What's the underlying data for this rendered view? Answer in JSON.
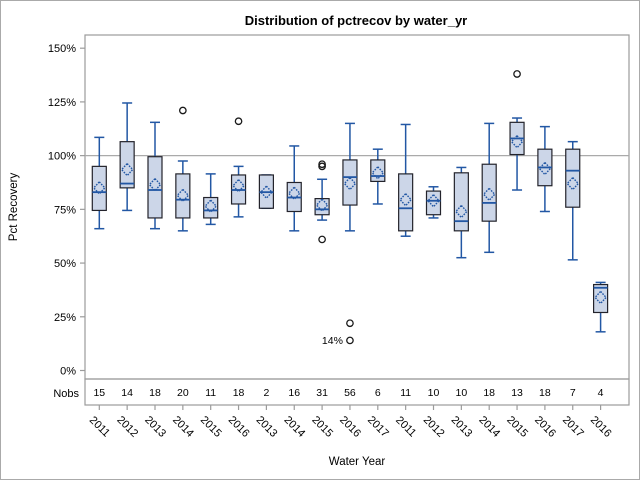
{
  "chart_data": {
    "type": "boxplot",
    "title": "Distribution of pctrecov by water_yr",
    "xlabel": "Water Year",
    "ylabel": "Pct Recovery",
    "nobs_row_label": "Nobs",
    "reference_line_value": 100,
    "y_axis": {
      "tick_values": [
        0,
        25,
        50,
        75,
        100,
        125,
        150
      ],
      "tick_labels": [
        "0%",
        "25%",
        "50%",
        "75%",
        "100%",
        "125%",
        "150%"
      ],
      "range": [
        -4,
        156
      ],
      "grid": false
    },
    "categories": [
      "2011",
      "2012",
      "2013",
      "2014",
      "2015",
      "2016",
      "2013",
      "2014",
      "2015",
      "2016",
      "2017",
      "2011",
      "2012",
      "2013",
      "2014",
      "2015",
      "2016",
      "2017",
      "2016"
    ],
    "nobs": [
      15,
      14,
      18,
      20,
      11,
      18,
      2,
      16,
      31,
      56,
      6,
      11,
      10,
      10,
      18,
      13,
      18,
      7,
      4
    ],
    "boxes": [
      {
        "water_yr": "2011",
        "nobs": 15,
        "whisker_low": 66,
        "q1": 74.5,
        "median": 83,
        "mean": 85,
        "q3": 95,
        "whisker_high": 108.5,
        "outliers": []
      },
      {
        "water_yr": "2012",
        "nobs": 14,
        "whisker_low": 74.5,
        "q1": 85,
        "median": 87,
        "mean": 93.5,
        "q3": 106.5,
        "whisker_high": 124.5,
        "outliers": []
      },
      {
        "water_yr": "2013",
        "nobs": 18,
        "whisker_low": 66,
        "q1": 71,
        "median": 84,
        "mean": 86.5,
        "q3": 99.5,
        "whisker_high": 115.5,
        "outliers": []
      },
      {
        "water_yr": "2014",
        "nobs": 20,
        "whisker_low": 65,
        "q1": 71,
        "median": 79.5,
        "mean": 81.5,
        "q3": 91.5,
        "whisker_high": 97.5,
        "outliers": [
          121
        ]
      },
      {
        "water_yr": "2015",
        "nobs": 11,
        "whisker_low": 68,
        "q1": 71,
        "median": 74.5,
        "mean": 76.5,
        "q3": 80.5,
        "whisker_high": 91.5,
        "outliers": []
      },
      {
        "water_yr": "2016",
        "nobs": 18,
        "whisker_low": 71.5,
        "q1": 77.5,
        "median": 84,
        "mean": 86,
        "q3": 91,
        "whisker_high": 95,
        "outliers": [
          116
        ]
      },
      {
        "water_yr": "2013",
        "nobs": 2,
        "whisker_low": 75.5,
        "q1": 75.5,
        "median": 83,
        "mean": 83,
        "q3": 91,
        "whisker_high": 91,
        "outliers": []
      },
      {
        "water_yr": "2014",
        "nobs": 16,
        "whisker_low": 65,
        "q1": 74,
        "median": 80.5,
        "mean": 82.5,
        "q3": 87.5,
        "whisker_high": 104.5,
        "outliers": []
      },
      {
        "water_yr": "2015",
        "nobs": 31,
        "whisker_low": 70,
        "q1": 72.5,
        "median": 75,
        "mean": 77,
        "q3": 80,
        "whisker_high": 89,
        "outliers": [
          95,
          96,
          61
        ]
      },
      {
        "water_yr": "2016",
        "nobs": 56,
        "whisker_low": 65,
        "q1": 77,
        "median": 90,
        "mean": 87,
        "q3": 98,
        "whisker_high": 115,
        "outliers": [
          22,
          14
        ]
      },
      {
        "water_yr": "2017",
        "nobs": 6,
        "whisker_low": 77.5,
        "q1": 88,
        "median": 90.5,
        "mean": 92,
        "q3": 98,
        "whisker_high": 103,
        "outliers": []
      },
      {
        "water_yr": "2011",
        "nobs": 11,
        "whisker_low": 62.5,
        "q1": 65,
        "median": 75.5,
        "mean": 79.5,
        "q3": 91.5,
        "whisker_high": 114.5,
        "outliers": []
      },
      {
        "water_yr": "2012",
        "nobs": 10,
        "whisker_low": 71,
        "q1": 72.5,
        "median": 79,
        "mean": 79,
        "q3": 83.5,
        "whisker_high": 85.5,
        "outliers": []
      },
      {
        "water_yr": "2013",
        "nobs": 10,
        "whisker_low": 52.5,
        "q1": 65,
        "median": 69.5,
        "mean": 74,
        "q3": 92,
        "whisker_high": 94.5,
        "outliers": []
      },
      {
        "water_yr": "2014",
        "nobs": 18,
        "whisker_low": 55,
        "q1": 69.5,
        "median": 78,
        "mean": 82,
        "q3": 96,
        "whisker_high": 115,
        "outliers": []
      },
      {
        "water_yr": "2015",
        "nobs": 13,
        "whisker_low": 84,
        "q1": 100.5,
        "median": 108,
        "mean": 106.5,
        "q3": 115.5,
        "whisker_high": 117.5,
        "outliers": [
          138
        ]
      },
      {
        "water_yr": "2016",
        "nobs": 18,
        "whisker_low": 74,
        "q1": 86,
        "median": 94.5,
        "mean": 94,
        "q3": 103,
        "whisker_high": 113.5,
        "outliers": []
      },
      {
        "water_yr": "2017",
        "nobs": 7,
        "whisker_low": 51.5,
        "q1": 76,
        "median": 93,
        "mean": 87,
        "q3": 103,
        "whisker_high": 106.5,
        "outliers": []
      },
      {
        "water_yr": "2016",
        "nobs": 4,
        "whisker_low": 18,
        "q1": 27,
        "median": 38.5,
        "mean": 34,
        "q3": 40,
        "whisker_high": 41,
        "outliers": []
      }
    ],
    "annotation": {
      "text": "14%",
      "category_index": 9,
      "value": 14
    },
    "legend": null,
    "colors": {
      "box_fill": "#ccd6e8",
      "box_border": "#23232b",
      "line_blue": "#2257a4",
      "outlier": "#1a1a1a",
      "reference_line": "#aaaaaa",
      "frame": "#9b9b9b",
      "text": "#000000"
    }
  }
}
